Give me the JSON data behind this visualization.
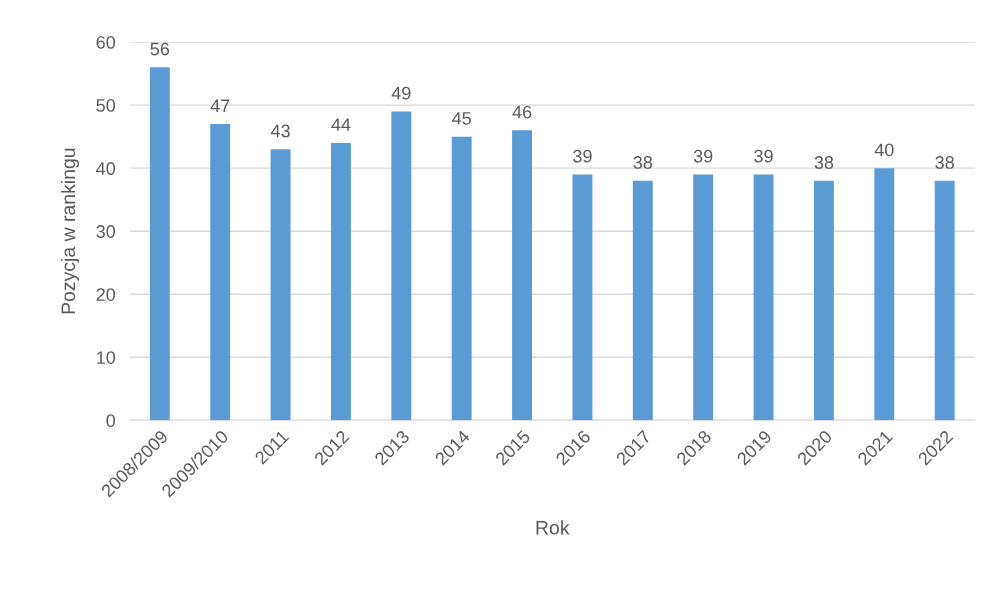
{
  "chart_data": {
    "type": "bar",
    "xlabel": "Rok",
    "ylabel": "Pozycja w rankingu",
    "categories": [
      "2008/2009",
      "2009/2010",
      "2011",
      "2012",
      "2013",
      "2014",
      "2015",
      "2016",
      "2017",
      "2018",
      "2019",
      "2020",
      "2021",
      "2022"
    ],
    "values": [
      56,
      47,
      43,
      44,
      49,
      45,
      46,
      39,
      38,
      39,
      39,
      38,
      40,
      38
    ],
    "color": "#5b9bd5",
    "ylim": [
      0,
      60
    ],
    "yticks": [
      0,
      10,
      20,
      30,
      40,
      50,
      60
    ],
    "grid": "y",
    "data_labels": true,
    "legend": false
  }
}
